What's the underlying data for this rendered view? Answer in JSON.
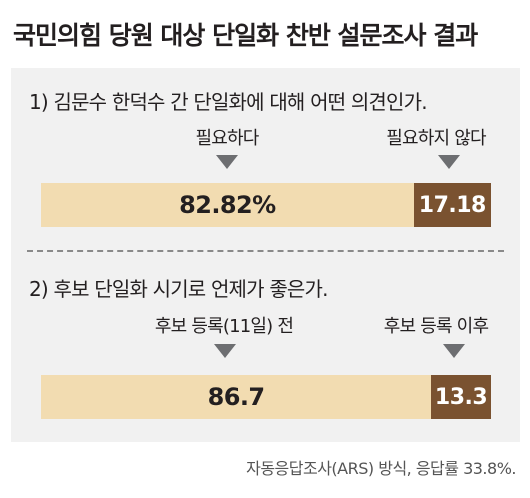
{
  "title": "국민의힘 당원 대상 단일화 찬반 설문조사 결과",
  "footnote": "자동응답조사(ARS) 방식, 응답률 33.8%.",
  "colors": {
    "accent": "#7a5230",
    "light": "#f2dcb1",
    "panel": "#f1f1f1",
    "arrow": "#6d6e71"
  },
  "chart_data": [
    {
      "type": "bar",
      "stacked": true,
      "orientation": "horizontal",
      "title": "1) 김문수 한덕수 간 단일화에 대해 어떤 의견인가.",
      "series": [
        {
          "name": "필요하다",
          "value": 82.82,
          "label": "82.82%"
        },
        {
          "name": "필요하지 않다",
          "value": 17.18,
          "label": "17.18"
        }
      ]
    },
    {
      "type": "bar",
      "stacked": true,
      "orientation": "horizontal",
      "title": "2) 후보 단일화 시기로 언제가 좋은가.",
      "series": [
        {
          "name": "후보 등록(11일) 전",
          "value": 86.7,
          "label": "86.7"
        },
        {
          "name": "후보 등록 이후",
          "value": 13.3,
          "label": "13.3"
        }
      ]
    }
  ]
}
